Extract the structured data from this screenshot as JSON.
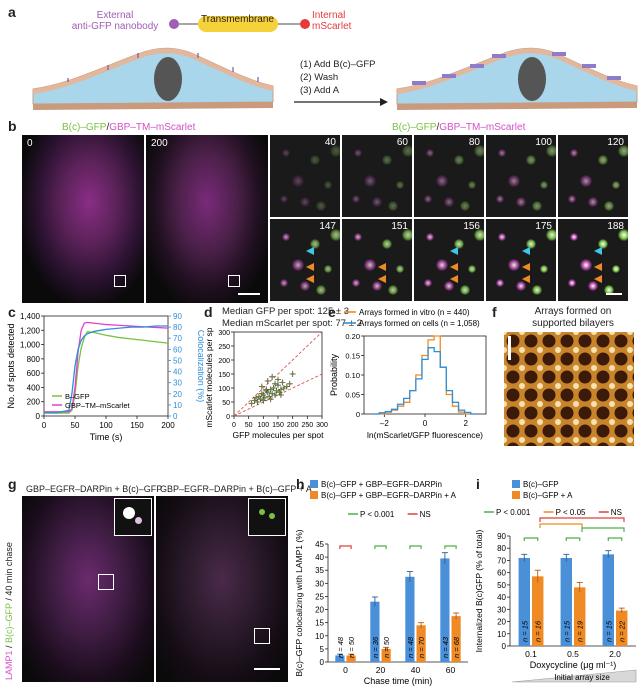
{
  "panel_letters": {
    "a": "a",
    "b": "b",
    "c": "c",
    "d": "d",
    "e": "e",
    "f": "f",
    "g": "g",
    "h": "h",
    "i": "i"
  },
  "panel_a": {
    "external_label_1": "External",
    "external_label_2": "anti-GFP nanobody",
    "transmembrane_label": "Transmembrane",
    "internal_label_1": "Internal",
    "internal_label_2": "mScarlet",
    "steps": [
      "(1) Add B(c)–GFP",
      "(2) Wash",
      "(3) Add A"
    ],
    "colors": {
      "nanobody": "#a05eb5",
      "mscarlet": "#e63b3b",
      "tm": "#f5d23a"
    }
  },
  "panel_b": {
    "title_green": "B(c)–GFP",
    "title_slash": "/",
    "title_magenta": "GBP–TM–mScarlet",
    "big_frames": [
      "0",
      "200"
    ],
    "small_frames": [
      "40",
      "60",
      "80",
      "100",
      "120",
      "147",
      "151",
      "156",
      "175",
      "188"
    ],
    "colors": {
      "green": "#7ac143",
      "magenta": "#d64fc7"
    }
  },
  "chart_data": [
    {
      "panel": "c",
      "type": "line",
      "xlabel": "Time (s)",
      "ylabel": "No. of spots detected",
      "y2label": "Colocalization (%)",
      "xlim": [
        0,
        200
      ],
      "ylim": [
        0,
        1400
      ],
      "y2lim": [
        0,
        90
      ],
      "xticks": [
        "0",
        "50",
        "100",
        "150",
        "200"
      ],
      "yticks": [
        "0",
        "200",
        "400",
        "600",
        "800",
        "1,000",
        "1,200",
        "1,400"
      ],
      "y2ticks": [
        "0",
        "10",
        "20",
        "30",
        "40",
        "50",
        "60",
        "70",
        "80",
        "90"
      ],
      "series": [
        {
          "name": "B–GFP",
          "color": "#7ac143",
          "x": [
            0,
            20,
            40,
            45,
            50,
            55,
            60,
            65,
            70,
            80,
            90,
            100,
            120,
            140,
            160,
            180,
            200
          ],
          "y": [
            40,
            40,
            40,
            80,
            300,
            700,
            950,
            1100,
            1180,
            1170,
            1150,
            1130,
            1100,
            1080,
            1060,
            1040,
            1020
          ]
        },
        {
          "name": "GBP–TM–mScarlet",
          "color": "#e040d0",
          "x": [
            0,
            20,
            40,
            45,
            50,
            55,
            60,
            65,
            70,
            80,
            90,
            100,
            120,
            140,
            160,
            180,
            200
          ],
          "y": [
            60,
            60,
            60,
            100,
            400,
            900,
            1200,
            1300,
            1310,
            1300,
            1290,
            1280,
            1270,
            1260,
            1250,
            1240,
            1230
          ]
        },
        {
          "name": "Colocalization",
          "color": "#2f8fd8",
          "axis": "y2",
          "x": [
            0,
            20,
            40,
            45,
            50,
            55,
            60,
            65,
            70,
            80,
            90,
            100,
            120,
            140,
            160,
            180,
            200
          ],
          "y": [
            3,
            3,
            5,
            20,
            45,
            60,
            68,
            72,
            74,
            76,
            77,
            78,
            79,
            80,
            80,
            81,
            81
          ]
        }
      ]
    },
    {
      "panel": "d",
      "type": "scatter",
      "header_1": "Median GFP per spot: 125 ± 3",
      "header_2": "Median mScarlet per spot: 77 ± 2",
      "xlabel": "GFP molecules per spot",
      "ylabel": "mScarlet molecules per spot",
      "xlim": [
        0,
        300
      ],
      "ylim": [
        0,
        300
      ],
      "xticks": [
        "0",
        "50",
        "100",
        "150",
        "200",
        "250",
        "300"
      ],
      "yticks": [
        "0",
        "50",
        "100",
        "150",
        "200",
        "250",
        "300"
      ],
      "x": [
        60,
        70,
        80,
        85,
        90,
        95,
        100,
        105,
        110,
        115,
        120,
        125,
        130,
        135,
        140,
        145,
        150,
        155,
        160,
        165,
        170,
        180,
        190,
        200,
        95,
        110,
        125,
        140,
        150,
        75,
        130,
        160,
        100,
        115
      ],
      "y": [
        45,
        55,
        50,
        70,
        60,
        80,
        75,
        65,
        90,
        85,
        70,
        95,
        80,
        100,
        75,
        90,
        110,
        85,
        95,
        120,
        100,
        105,
        115,
        150,
        105,
        95,
        60,
        115,
        130,
        65,
        140,
        75,
        55,
        125
      ]
    },
    {
      "panel": "e",
      "type": "line",
      "xlabel": "ln(mScarlet/GFP fluorescence)",
      "ylabel": "Probability",
      "xlim": [
        -3,
        3
      ],
      "ylim": [
        0,
        0.2
      ],
      "xticks": [
        "–2",
        "0",
        "2"
      ],
      "yticks": [
        "0",
        "0.05",
        "0.10",
        "0.15",
        "0.20"
      ],
      "series": [
        {
          "name": "Arrays formed in vitro (n = 440)",
          "color": "#f08a24",
          "x": [
            -2.4,
            -2.1,
            -1.8,
            -1.5,
            -1.2,
            -0.9,
            -0.6,
            -0.3,
            0,
            0.3,
            0.6,
            0.9,
            1.2,
            1.5,
            1.8,
            2.1,
            2.4
          ],
          "y": [
            0,
            0,
            0.005,
            0.01,
            0.02,
            0.03,
            0.06,
            0.1,
            0.15,
            0.19,
            0.2,
            0.12,
            0.05,
            0.02,
            0.005,
            0,
            0
          ]
        },
        {
          "name": "Arrays formed on cells (n = 1,058)",
          "color": "#2f8fd8",
          "x": [
            -2.4,
            -2.1,
            -1.8,
            -1.5,
            -1.2,
            -0.9,
            -0.6,
            -0.3,
            0,
            0.3,
            0.6,
            0.9,
            1.2,
            1.5,
            1.8,
            2.1,
            2.4
          ],
          "y": [
            0,
            0.003,
            0.006,
            0.012,
            0.025,
            0.04,
            0.06,
            0.09,
            0.14,
            0.17,
            0.16,
            0.12,
            0.06,
            0.03,
            0.01,
            0.004,
            0
          ]
        }
      ]
    },
    {
      "panel": "h",
      "type": "bar",
      "ylabel": "B(c)–GFP colocalizing with LAMP1 (%)",
      "xlabel": "Chase time (min)",
      "ylim": [
        0,
        45
      ],
      "yticks": [
        "0",
        "5",
        "10",
        "15",
        "20",
        "25",
        "30",
        "35",
        "40",
        "45"
      ],
      "categories": [
        "0",
        "20",
        "40",
        "60"
      ],
      "legend": [
        "B(c)–GFP + GBP–EGFR–DARPin",
        "B(c)–GFP + GBP–EGFR–DARPin + A"
      ],
      "sig_legend": [
        "P < 0.001",
        "NS"
      ],
      "series": [
        {
          "name": "B(c)–GFP + GBP–EGFR–DARPin",
          "color": "#4a90d9",
          "values": [
            2.5,
            23,
            32.5,
            39.5
          ],
          "err": [
            0.5,
            1.8,
            2,
            2.2
          ],
          "n": [
            "n = 48",
            "n = 36",
            "n = 48",
            "n = 43"
          ]
        },
        {
          "name": "B(c)–GFP + GBP–EGFR–DARPin + A",
          "color": "#f08a24",
          "values": [
            2.5,
            5,
            14,
            17.5
          ],
          "err": [
            0.5,
            0.6,
            1,
            1.2
          ],
          "n": [
            "n = 50",
            "n = 50",
            "n = 70",
            "n = 68"
          ]
        }
      ]
    },
    {
      "panel": "i",
      "type": "bar",
      "ylabel": "Internalized B(c)GFP (% of total)",
      "xlabel": "Doxycycline (μg ml⁻¹)",
      "ylim": [
        0,
        90
      ],
      "yticks": [
        "0",
        "10",
        "20",
        "30",
        "40",
        "50",
        "60",
        "70",
        "80",
        "90"
      ],
      "categories": [
        "0.1",
        "0.5",
        "2.0"
      ],
      "legend": [
        "B(c)–GFP",
        "B(c)–GFP + A"
      ],
      "sig_legend": [
        "P < 0.001",
        "P < 0.05",
        "NS"
      ],
      "wedge_label": "Initial array size",
      "series": [
        {
          "name": "B(c)–GFP",
          "color": "#4a90d9",
          "values": [
            72,
            72,
            75
          ],
          "err": [
            3,
            3,
            3
          ],
          "n": [
            "n = 15",
            "n = 15",
            "n = 15"
          ]
        },
        {
          "name": "B(c)–GFP + A",
          "color": "#f08a24",
          "values": [
            57,
            48,
            29
          ],
          "err": [
            5,
            4,
            2
          ],
          "n": [
            "n = 16",
            "n = 19",
            "n = 22"
          ]
        }
      ]
    }
  ],
  "panel_f": {
    "title_1": "Arrays formed on",
    "title_2": "supported bilayers"
  },
  "panel_g": {
    "header_left": "GBP–EGFR–DARPin + B(c)–GFP",
    "header_right": "GBP–EGFR–DARPin + B(c)–GFP + A",
    "side_magenta": "LAMP1",
    "side_slash": " / ",
    "side_green": "B(c)–GFP",
    "side_rest": " / 40 min chase"
  },
  "colors": {
    "sig_green": "#4db04a",
    "sig_red": "#e0403a",
    "sig_orange": "#f08a24",
    "blue": "#4a90d9",
    "orange": "#f08a24"
  }
}
